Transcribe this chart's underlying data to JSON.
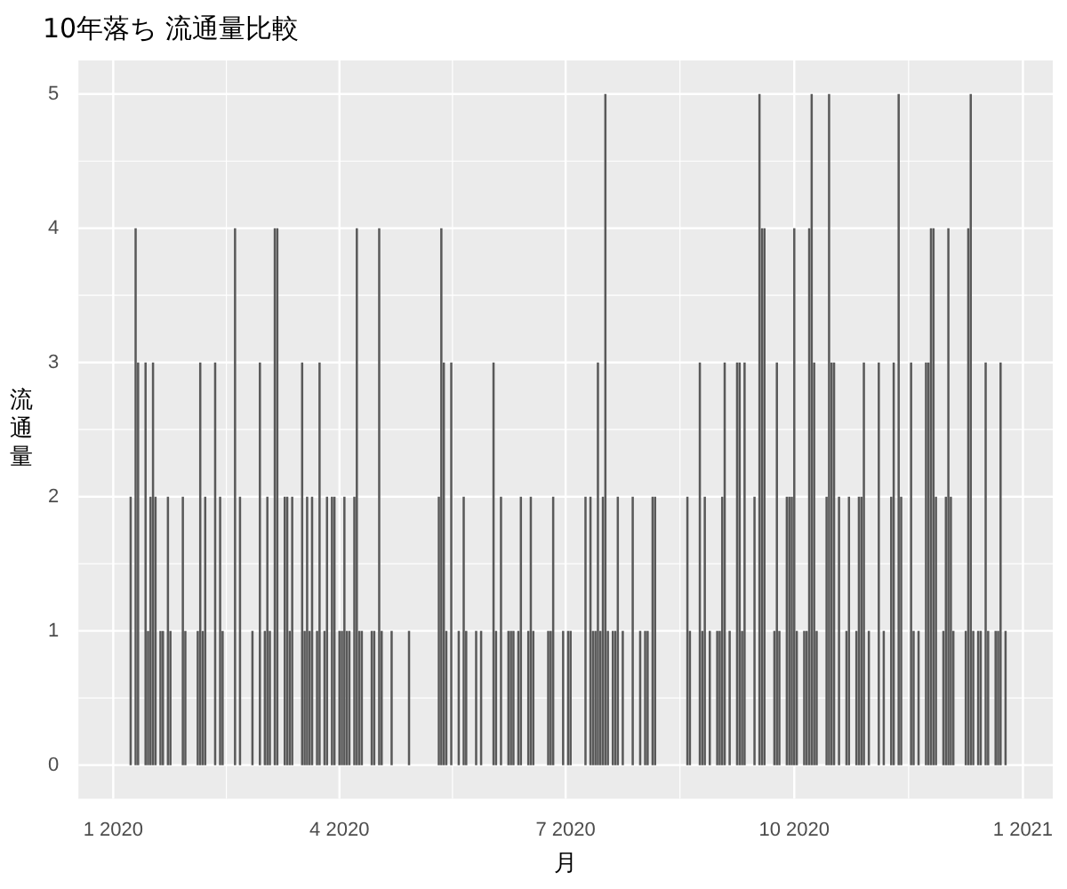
{
  "chart_data": {
    "type": "bar",
    "title": "10年落ち 流通量比較",
    "xlabel": "月",
    "ylabel": "流通量",
    "color": "#595959",
    "grid": true,
    "xlim": [
      "2019-12-18",
      "2021-01-13"
    ],
    "xticks": [
      {
        "value": "2020-01-01",
        "label": "1 2020"
      },
      {
        "value": "2020-04-01",
        "label": "4 2020"
      },
      {
        "value": "2020-07-01",
        "label": "7 2020"
      },
      {
        "value": "2020-10-01",
        "label": "10 2020"
      },
      {
        "value": "2021-01-01",
        "label": "1 2021"
      }
    ],
    "ylim": [
      -0.25,
      5.25
    ],
    "yticks": [
      0,
      1,
      2,
      3,
      4,
      5
    ],
    "x": [
      "2020-01-08",
      "2020-01-10",
      "2020-01-11",
      "2020-01-14",
      "2020-01-15",
      "2020-01-16",
      "2020-01-17",
      "2020-01-18",
      "2020-01-20",
      "2020-01-21",
      "2020-01-23",
      "2020-01-24",
      "2020-01-29",
      "2020-01-30",
      "2020-02-04",
      "2020-02-05",
      "2020-02-06",
      "2020-02-07",
      "2020-02-11",
      "2020-02-13",
      "2020-02-14",
      "2020-02-19",
      "2020-02-21",
      "2020-02-26",
      "2020-02-29",
      "2020-03-02",
      "2020-03-03",
      "2020-03-04",
      "2020-03-06",
      "2020-03-07",
      "2020-03-10",
      "2020-03-11",
      "2020-03-12",
      "2020-03-13",
      "2020-03-17",
      "2020-03-18",
      "2020-03-19",
      "2020-03-20",
      "2020-03-21",
      "2020-03-23",
      "2020-03-24",
      "2020-03-26",
      "2020-03-27",
      "2020-03-29",
      "2020-03-30",
      "2020-04-01",
      "2020-04-02",
      "2020-04-03",
      "2020-04-04",
      "2020-04-05",
      "2020-04-07",
      "2020-04-08",
      "2020-04-09",
      "2020-04-10",
      "2020-04-14",
      "2020-04-15",
      "2020-04-17",
      "2020-04-18",
      "2020-04-22",
      "2020-04-29",
      "2020-05-11",
      "2020-05-12",
      "2020-05-13",
      "2020-05-14",
      "2020-05-16",
      "2020-05-19",
      "2020-05-21",
      "2020-05-22",
      "2020-05-26",
      "2020-05-28",
      "2020-06-02",
      "2020-06-03",
      "2020-06-05",
      "2020-06-08",
      "2020-06-09",
      "2020-06-10",
      "2020-06-12",
      "2020-06-13",
      "2020-06-16",
      "2020-06-17",
      "2020-06-18",
      "2020-06-24",
      "2020-06-25",
      "2020-06-26",
      "2020-06-30",
      "2020-07-02",
      "2020-07-03",
      "2020-07-09",
      "2020-07-11",
      "2020-07-12",
      "2020-07-13",
      "2020-07-14",
      "2020-07-15",
      "2020-07-16",
      "2020-07-17",
      "2020-07-18",
      "2020-07-20",
      "2020-07-21",
      "2020-07-22",
      "2020-07-24",
      "2020-07-28",
      "2020-07-31",
      "2020-08-02",
      "2020-08-03",
      "2020-08-05",
      "2020-08-06",
      "2020-08-19",
      "2020-08-20",
      "2020-08-24",
      "2020-08-25",
      "2020-08-26",
      "2020-08-28",
      "2020-08-31",
      "2020-09-01",
      "2020-09-02",
      "2020-09-03",
      "2020-09-05",
      "2020-09-08",
      "2020-09-09",
      "2020-09-10",
      "2020-09-11",
      "2020-09-15",
      "2020-09-17",
      "2020-09-18",
      "2020-09-19",
      "2020-09-23",
      "2020-09-24",
      "2020-09-25",
      "2020-09-28",
      "2020-09-29",
      "2020-09-30",
      "2020-10-01",
      "2020-10-02",
      "2020-10-05",
      "2020-10-06",
      "2020-10-07",
      "2020-10-08",
      "2020-10-09",
      "2020-10-10",
      "2020-10-14",
      "2020-10-15",
      "2020-10-16",
      "2020-10-17",
      "2020-10-19",
      "2020-10-22",
      "2020-10-23",
      "2020-10-26",
      "2020-10-27",
      "2020-10-28",
      "2020-10-29",
      "2020-10-31",
      "2020-11-04",
      "2020-11-06",
      "2020-11-09",
      "2020-11-10",
      "2020-11-12",
      "2020-11-13",
      "2020-11-17",
      "2020-11-18",
      "2020-11-20",
      "2020-11-23",
      "2020-11-24",
      "2020-11-25",
      "2020-11-26",
      "2020-11-27",
      "2020-11-30",
      "2020-12-01",
      "2020-12-02",
      "2020-12-03",
      "2020-12-04",
      "2020-12-09",
      "2020-12-10",
      "2020-12-11",
      "2020-12-12",
      "2020-12-14",
      "2020-12-15",
      "2020-12-17",
      "2020-12-18",
      "2020-12-21",
      "2020-12-22",
      "2020-12-23",
      "2020-12-25"
    ],
    "values": [
      2,
      4,
      3,
      3,
      1,
      2,
      3,
      2,
      1,
      1,
      2,
      1,
      2,
      1,
      1,
      3,
      1,
      2,
      3,
      2,
      1,
      4,
      2,
      1,
      3,
      1,
      2,
      1,
      4,
      4,
      2,
      2,
      1,
      2,
      3,
      1,
      2,
      1,
      2,
      1,
      3,
      1,
      2,
      2,
      2,
      1,
      1,
      2,
      1,
      1,
      2,
      4,
      1,
      1,
      1,
      1,
      4,
      1,
      1,
      1,
      2,
      4,
      3,
      1,
      3,
      1,
      2,
      1,
      1,
      1,
      3,
      1,
      2,
      1,
      1,
      1,
      1,
      2,
      1,
      2,
      1,
      1,
      1,
      2,
      1,
      1,
      1,
      2,
      2,
      1,
      1,
      3,
      1,
      2,
      5,
      1,
      1,
      1,
      2,
      1,
      2,
      1,
      1,
      1,
      2,
      2,
      2,
      1,
      3,
      1,
      2,
      1,
      1,
      1,
      2,
      3,
      1,
      3,
      3,
      1,
      3,
      2,
      5,
      4,
      4,
      1,
      3,
      1,
      2,
      2,
      2,
      4,
      1,
      1,
      1,
      4,
      5,
      3,
      1,
      2,
      5,
      3,
      3,
      2,
      1,
      2,
      1,
      2,
      2,
      3,
      1,
      3,
      1,
      2,
      3,
      5,
      2,
      3,
      1,
      1,
      3,
      3,
      4,
      4,
      2,
      1,
      2,
      4,
      2,
      1,
      1,
      4,
      5,
      1,
      1,
      1,
      3,
      1,
      1,
      1,
      3,
      1
    ]
  }
}
